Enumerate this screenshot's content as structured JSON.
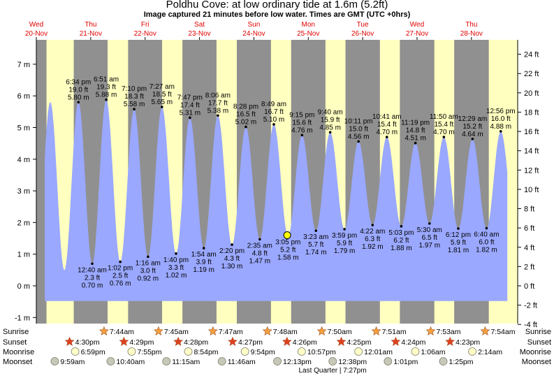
{
  "title": "Poldhu Cove: at low  ordinary tide at 1.6m (5.2ft)",
  "subtitle": "Image captured 21 minutes before low water. Times are GMT (UTC +0hrs)",
  "colors": {
    "day_bg": "#ffffc0",
    "night_bg": "#909090",
    "tide_fill": "#9aa8ff",
    "day_text": "#e00000",
    "sun_star": "#f4a040",
    "sunset_star": "#e04020",
    "moon_circle": "#fffdc8",
    "moonset_circle": "#c8c8b8",
    "current_marker": "#ffff00"
  },
  "chart_data": {
    "type": "area",
    "title": "Poldhu Cove: at low  ordinary tide at 1.6m (5.2ft)",
    "y_left_unit": "m",
    "y_right_unit": "ft",
    "ylim_m": [
      -1.2,
      7.8
    ],
    "y_left_ticks": [
      "-1 m",
      "0 m",
      "1 m",
      "2 m",
      "3 m",
      "4 m",
      "5 m",
      "6 m",
      "7 m"
    ],
    "y_right_ticks": [
      "-4 ft",
      "-2 ft",
      "0 ft",
      "2 ft",
      "4 ft",
      "6 ft",
      "8 ft",
      "10 ft",
      "12 ft",
      "14 ft",
      "16 ft",
      "18 ft",
      "20 ft",
      "22 ft",
      "24 ft"
    ],
    "days": [
      {
        "weekday": "Wed",
        "date": "20-Nov"
      },
      {
        "weekday": "Thu",
        "date": "21-Nov"
      },
      {
        "weekday": "Fri",
        "date": "22-Nov"
      },
      {
        "weekday": "Sat",
        "date": "23-Nov"
      },
      {
        "weekday": "Sun",
        "date": "24-Nov"
      },
      {
        "weekday": "Mon",
        "date": "25-Nov"
      },
      {
        "weekday": "Tue",
        "date": "26-Nov"
      },
      {
        "weekday": "Wed",
        "date": "27-Nov"
      },
      {
        "weekday": "Thu",
        "date": "28-Nov"
      }
    ],
    "tides": [
      {
        "type": "high",
        "time": "6:34 pm",
        "ft": "19.0 ft",
        "m": 5.8,
        "day": 20.774
      },
      {
        "type": "low",
        "time": "12:40 am",
        "ft": "2.3 ft",
        "m": 0.7,
        "day": 21.028
      },
      {
        "type": "high",
        "time": "6:51 am",
        "ft": "19.3 ft",
        "m": 5.88,
        "day": 21.285
      },
      {
        "type": "low",
        "time": "1:02 pm",
        "ft": "2.5 ft",
        "m": 0.76,
        "day": 21.543
      },
      {
        "type": "high",
        "time": "7:10 pm",
        "ft": "18.3 ft",
        "m": 5.58,
        "day": 21.799
      },
      {
        "type": "low",
        "time": "1:16 am",
        "ft": "3.0 ft",
        "m": 0.92,
        "day": 22.053
      },
      {
        "type": "high",
        "time": "7:27 am",
        "ft": "18.5 ft",
        "m": 5.65,
        "day": 22.31
      },
      {
        "type": "low",
        "time": "1:40 pm",
        "ft": "3.3 ft",
        "m": 1.02,
        "day": 22.569
      },
      {
        "type": "high",
        "time": "7:47 pm",
        "ft": "17.4 ft",
        "m": 5.31,
        "day": 22.824
      },
      {
        "type": "low",
        "time": "1:54 am",
        "ft": "3.9 ft",
        "m": 1.19,
        "day": 23.079
      },
      {
        "type": "high",
        "time": "8:06 am",
        "ft": "17.7 ft",
        "m": 5.38,
        "day": 23.338
      },
      {
        "type": "low",
        "time": "2:20 pm",
        "ft": "4.3 ft",
        "m": 1.3,
        "day": 23.597
      },
      {
        "type": "high",
        "time": "8:28 pm",
        "ft": "16.5 ft",
        "m": 5.02,
        "day": 23.853
      },
      {
        "type": "low",
        "time": "2:35 am",
        "ft": "4.8 ft",
        "m": 1.47,
        "day": 24.108
      },
      {
        "type": "high",
        "time": "8:49 am",
        "ft": "16.7 ft",
        "m": 5.1,
        "day": 24.367
      },
      {
        "type": "low",
        "time": "3:05 pm",
        "ft": "5.2 ft",
        "m": 1.58,
        "day": 24.628
      },
      {
        "type": "high",
        "time": "9:15 pm",
        "ft": "15.6 ft",
        "m": 4.76,
        "day": 24.885
      },
      {
        "type": "low",
        "time": "3:23 am",
        "ft": "5.7 ft",
        "m": 1.74,
        "day": 25.141
      },
      {
        "type": "high",
        "time": "9:40 am",
        "ft": "15.9 ft",
        "m": 4.85,
        "day": 25.403
      },
      {
        "type": "low",
        "time": "3:59 pm",
        "ft": "5.9 ft",
        "m": 1.79,
        "day": 25.666
      },
      {
        "type": "high",
        "time": "10:11 pm",
        "ft": "15.0 ft",
        "m": 4.56,
        "day": 25.924
      },
      {
        "type": "low",
        "time": "4:22 am",
        "ft": "6.3 ft",
        "m": 1.92,
        "day": 26.182
      },
      {
        "type": "high",
        "time": "10:41 am",
        "ft": "15.4 ft",
        "m": 4.7,
        "day": 26.445
      },
      {
        "type": "low",
        "time": "5:03 pm",
        "ft": "6.2 ft",
        "m": 1.88,
        "day": 26.71
      },
      {
        "type": "high",
        "time": "11:19 pm",
        "ft": "14.8 ft",
        "m": 4.51,
        "day": 26.97
      },
      {
        "type": "low",
        "time": "5:30 am",
        "ft": "6.5 ft",
        "m": 1.97,
        "day": 27.229
      },
      {
        "type": "high",
        "time": "11:50 am",
        "ft": "15.4 ft",
        "m": 4.7,
        "day": 27.493
      },
      {
        "type": "low",
        "time": "6:12 pm",
        "ft": "5.9 ft",
        "m": 1.81,
        "day": 27.758
      },
      {
        "type": "high",
        "time": "12:29 am",
        "ft": "15.2 ft",
        "m": 4.64,
        "day": 28.02
      },
      {
        "type": "low",
        "time": "6:40 am",
        "ft": "6.0 ft",
        "m": 1.82,
        "day": 28.278
      },
      {
        "type": "high",
        "time": "12:56 pm",
        "ft": "16.0 ft",
        "m": 4.88,
        "day": 28.539
      }
    ],
    "current": {
      "m": 1.6,
      "day": 24.613
    },
    "nights": [
      [
        20.0,
        20.187
      ],
      [
        20.688,
        21.31
      ],
      [
        21.687,
        22.312
      ],
      [
        22.686,
        23.313
      ],
      [
        23.686,
        24.314
      ],
      [
        24.685,
        25.316
      ],
      [
        25.684,
        26.317
      ],
      [
        26.684,
        27.318
      ],
      [
        27.683,
        28.319
      ]
    ],
    "sunrise": [
      {
        "time": "7:44am",
        "day": 21.322
      },
      {
        "time": "7:45am",
        "day": 22.323
      },
      {
        "time": "7:47am",
        "day": 23.324
      },
      {
        "time": "7:48am",
        "day": 24.325
      },
      {
        "time": "7:50am",
        "day": 25.326
      },
      {
        "time": "7:51am",
        "day": 26.327
      },
      {
        "time": "7:53am",
        "day": 27.328
      },
      {
        "time": "7:54am",
        "day": 28.329
      }
    ],
    "sunset": [
      {
        "time": "4:30pm",
        "day": 20.688
      },
      {
        "time": "4:29pm",
        "day": 21.687
      },
      {
        "time": "4:28pm",
        "day": 22.686
      },
      {
        "time": "4:27pm",
        "day": 23.686
      },
      {
        "time": "4:26pm",
        "day": 24.685
      },
      {
        "time": "4:25pm",
        "day": 25.684
      },
      {
        "time": "4:24pm",
        "day": 26.684
      },
      {
        "time": "4:23pm",
        "day": 27.683
      }
    ],
    "moonrise": [
      {
        "time": "6:59pm",
        "day": 20.791
      },
      {
        "time": "7:55pm",
        "day": 21.83
      },
      {
        "time": "8:54pm",
        "day": 22.871
      },
      {
        "time": "9:54pm",
        "day": 23.913
      },
      {
        "time": "10:57pm",
        "day": 24.956
      },
      {
        "time": "12:01am",
        "day": 26.0
      },
      {
        "time": "1:06am",
        "day": 27.045
      },
      {
        "time": "2:14am",
        "day": 28.093
      }
    ],
    "moonset": [
      {
        "time": "9:59am",
        "day": 20.416
      },
      {
        "time": "10:40am",
        "day": 21.444
      },
      {
        "time": "11:15am",
        "day": 22.469
      },
      {
        "time": "11:46am",
        "day": 23.49
      },
      {
        "time": "12:13pm",
        "day": 24.509
      },
      {
        "time": "12:38pm",
        "day": 25.526
      },
      {
        "time": "1:01pm",
        "day": 26.542
      },
      {
        "time": "1:25pm",
        "day": 27.559
      }
    ],
    "moon_phase": "Last Quarter | 7:27pm",
    "row_labels": {
      "sunrise": "Sunrise",
      "sunset": "Sunset",
      "moonrise": "Moonrise",
      "moonset": "Moonset"
    }
  }
}
